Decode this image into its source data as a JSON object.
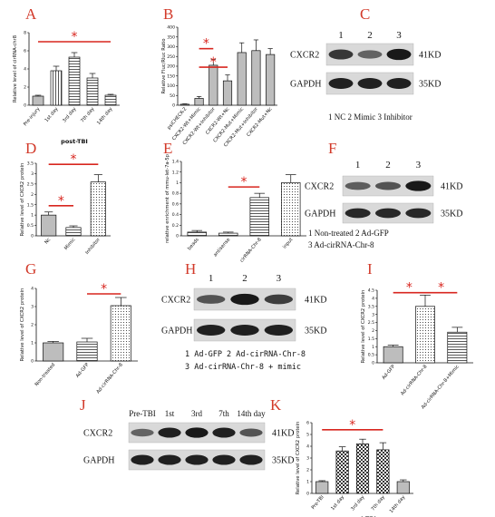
{
  "panels": {
    "A": "A",
    "B": "B",
    "C": "C",
    "D": "D",
    "E": "E",
    "F": "F",
    "G": "G",
    "H": "H",
    "I": "I",
    "J": "J",
    "K": "K"
  },
  "significance_mark": "*",
  "colors": {
    "panel_letter": "#d23a2a",
    "significance": "#d8261f",
    "bar_outline": "#111111",
    "bar_fill_plain": "#bdbdbd",
    "bar_fill_pattern": "#ffffff"
  },
  "chart_data": [
    {
      "id": "A",
      "type": "bar",
      "categories": [
        "Pre-injury",
        "1st day",
        "3rd day",
        "7th day",
        "14th day"
      ],
      "values": [
        1.0,
        3.8,
        5.3,
        3.0,
        1.1
      ],
      "errors": [
        0.1,
        0.5,
        0.5,
        0.5,
        0.1
      ],
      "patterns": [
        "gray",
        "vline",
        "hline",
        "hline",
        "hline"
      ],
      "ylabel": "Relative level of cirRNA-chr8",
      "xlabel": "post-TBI",
      "ylim": [
        0,
        8
      ],
      "yticks": [
        0,
        2,
        4,
        6,
        8
      ],
      "significance": [
        {
          "from": 0,
          "to": 4,
          "level": 7.0,
          "mark": "*"
        }
      ]
    },
    {
      "id": "B",
      "type": "bar",
      "categories": [
        "psiCHECK-2",
        "CXCR2-Wt+Mimic",
        "CXCR2-Wt+Inhibitor",
        "CXCR2-Wt+Nc",
        "CXCR2-Mut+Mimic",
        "CXCR2-Mut+Inhibitor",
        "CXCR2-Mut+Nc"
      ],
      "values": [
        5,
        35,
        205,
        125,
        270,
        280,
        260
      ],
      "errors": [
        2,
        10,
        30,
        30,
        50,
        55,
        30
      ],
      "patterns": [
        "gray",
        "gray",
        "gray",
        "gray",
        "gray",
        "gray",
        "gray"
      ],
      "ylabel": "Relative Fluc/Rluc Ratio",
      "xlabel": "",
      "ylim": [
        0,
        400
      ],
      "yticks": [
        0,
        50,
        100,
        150,
        200,
        250,
        300,
        350,
        400
      ],
      "significance": [
        {
          "from": 1,
          "to": 2,
          "level": 290,
          "mark": "*"
        },
        {
          "from": 1,
          "to": 3,
          "level": 195,
          "mark": "*"
        }
      ]
    },
    {
      "id": "D",
      "type": "bar",
      "categories": [
        "Nc",
        "Mimic",
        "Inhibitor"
      ],
      "values": [
        1.0,
        0.4,
        2.6
      ],
      "errors": [
        0.15,
        0.08,
        0.35
      ],
      "patterns": [
        "gray",
        "hline",
        "dots"
      ],
      "ylabel": "Relative level of CXCR2 protein",
      "xlabel": "",
      "ylim": [
        0,
        3.5
      ],
      "yticks": [
        0,
        0.5,
        1.0,
        1.5,
        2.0,
        2.5,
        3.0,
        3.5
      ],
      "significance": [
        {
          "from": 0,
          "to": 1,
          "level": 1.45,
          "mark": "*"
        },
        {
          "from": 0,
          "to": 2,
          "level": 3.45,
          "mark": "*"
        }
      ]
    },
    {
      "id": "E",
      "type": "bar",
      "categories": [
        "beads",
        "antisense",
        "cirRNA-Chr-8",
        "input"
      ],
      "values": [
        0.07,
        0.05,
        0.72,
        1.0
      ],
      "errors": [
        0.03,
        0.02,
        0.08,
        0.15
      ],
      "patterns": [
        "hline",
        "hline",
        "hline",
        "dots"
      ],
      "ylabel": "relative enrichment of mmu-let-7a-5p",
      "xlabel": "",
      "ylim": [
        0,
        1.4
      ],
      "yticks": [
        0,
        0.2,
        0.4,
        0.6,
        0.8,
        1.0,
        1.2,
        1.4
      ],
      "significance": [
        {
          "from": 1,
          "to": 2,
          "level": 0.92,
          "mark": "*"
        }
      ]
    },
    {
      "id": "G",
      "type": "bar",
      "categories": [
        "Non-treated",
        "Ad-GFP",
        "Ad-cirRNA-Chr-8"
      ],
      "values": [
        1.0,
        1.05,
        3.05
      ],
      "errors": [
        0.08,
        0.2,
        0.45
      ],
      "patterns": [
        "gray",
        "hline",
        "dots"
      ],
      "ylabel": "Relative level of CXCR2 protein",
      "xlabel": "",
      "ylim": [
        0,
        4
      ],
      "yticks": [
        0,
        1,
        2,
        3,
        4
      ],
      "significance": [
        {
          "from": 1,
          "to": 2,
          "level": 3.7,
          "mark": "*"
        }
      ]
    },
    {
      "id": "I",
      "type": "bar",
      "categories": [
        "Ad-GFP",
        "Ad-cirRNA-Chr-8",
        "Ad-cirRNA-Chr-8+Mimic"
      ],
      "values": [
        1.0,
        3.5,
        1.9
      ],
      "errors": [
        0.1,
        0.7,
        0.3
      ],
      "patterns": [
        "gray",
        "dots",
        "hline"
      ],
      "ylabel": "Relative level of CXCR2 protein",
      "xlabel": "",
      "ylim": [
        0,
        4.5
      ],
      "yticks": [
        0,
        0.5,
        1.0,
        1.5,
        2.0,
        2.5,
        3.0,
        3.5,
        4.0,
        4.5
      ],
      "significance": [
        {
          "from": 0,
          "to": 1,
          "level": 4.35,
          "mark": "*"
        },
        {
          "from": 1,
          "to": 2,
          "level": 4.35,
          "mark": "*"
        }
      ]
    },
    {
      "id": "K",
      "type": "bar",
      "categories": [
        "Pre-TBI",
        "1st day",
        "3rd day",
        "7th day",
        "14th day"
      ],
      "values": [
        1.0,
        3.6,
        4.2,
        3.7,
        1.0
      ],
      "errors": [
        0.08,
        0.35,
        0.4,
        0.6,
        0.15
      ],
      "patterns": [
        "gray",
        "check",
        "check",
        "check",
        "gray"
      ],
      "ylabel": "Relative level of CXCR2 protein",
      "xlabel": "post-TBI",
      "ylim": [
        0,
        6
      ],
      "yticks": [
        0,
        1,
        2,
        3,
        4,
        5,
        6
      ],
      "significance": [
        {
          "from": 0,
          "to": 3,
          "level": 5.4,
          "mark": "*"
        }
      ]
    }
  ],
  "blots": {
    "C": {
      "lanes": [
        "1",
        "2",
        "3"
      ],
      "rows": [
        {
          "name": "CXCR2",
          "kd": "41KD",
          "bands": [
            0.75,
            0.45,
            0.95
          ]
        },
        {
          "name": "GAPDH",
          "kd": "35KD",
          "bands": [
            0.9,
            0.9,
            0.9
          ]
        }
      ],
      "legend": [
        "1 NC  2 Mimic  3 Inhibitor"
      ]
    },
    "F": {
      "lanes": [
        "1",
        "2",
        "3"
      ],
      "rows": [
        {
          "name": "CXCR2",
          "kd": "41KD",
          "bands": [
            0.5,
            0.55,
            0.95
          ]
        },
        {
          "name": "GAPDH",
          "kd": "35KD",
          "bands": [
            0.85,
            0.85,
            0.85
          ]
        }
      ],
      "legend": [
        "1 Non-treated  2 Ad-GFP",
        "3 Ad-cirRNA-Chr-8"
      ]
    },
    "H": {
      "lanes": [
        "1",
        "2",
        "3"
      ],
      "rows": [
        {
          "name": "CXCR2",
          "kd": "41KD",
          "bands": [
            0.55,
            0.95,
            0.7
          ]
        },
        {
          "name": "GAPDH",
          "kd": "35KD",
          "bands": [
            0.9,
            0.9,
            0.9
          ]
        }
      ],
      "legend": [
        "1 Ad-GFP  2 Ad-cirRNA-Chr-8",
        "3 Ad-cirRNA-Chr-8 + mimic"
      ]
    },
    "J": {
      "lanes": [
        "Pre-TBI",
        "1st",
        "3rd",
        "7th",
        "14th day"
      ],
      "rows": [
        {
          "name": "CXCR2",
          "kd": "41KD",
          "bands": [
            0.45,
            0.9,
            0.95,
            0.9,
            0.55
          ]
        },
        {
          "name": "GAPDH",
          "kd": "35KD",
          "bands": [
            0.9,
            0.9,
            0.9,
            0.9,
            0.9
          ]
        }
      ],
      "legend": []
    }
  }
}
